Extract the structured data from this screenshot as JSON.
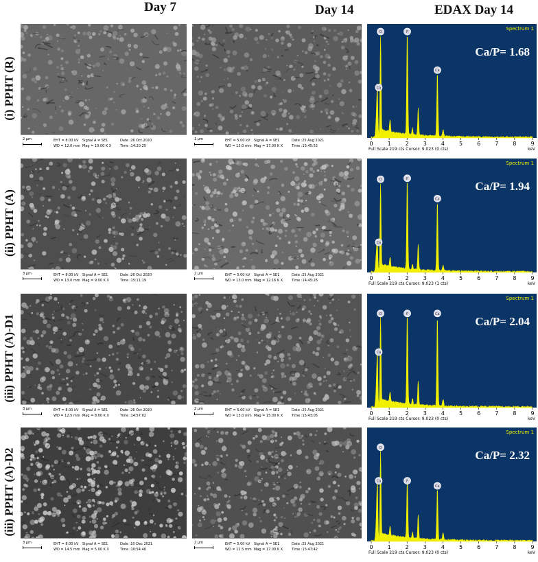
{
  "headers": {
    "day7": "Day 7",
    "day14": "Day 14",
    "edax": "EDAX Day 14"
  },
  "rows": [
    {
      "label": "(i) PPHT (R)",
      "day7": {
        "scale": "2 µm",
        "eht": "EHT = 8.00 kV",
        "wd": "WD = 12.0 mm",
        "signal": "Signal A = SE1",
        "mag": "Mag = 10.00 K X",
        "date": "Date :26 Oct 2020",
        "time": "Time :14:20:25"
      },
      "day14": {
        "scale": "1 µm",
        "eht": "EHT = 5.00 kV",
        "wd": "WD = 13.0 mm",
        "signal": "Signal A = SE1",
        "mag": "Mag = 17.00 K X",
        "date": "Date :25 Aug 2021",
        "time": "Time :15:45:52"
      },
      "edax": {
        "ratio": "Ca/P= 1.68",
        "spectrum": "Spectrum 1",
        "fullscale": "Full Scale 219 cts Cursor: 9.023 (0 cts)"
      }
    },
    {
      "label": "(ii) PPHT (A)",
      "day7": {
        "scale": "3 µm",
        "eht": "EHT = 8.00 kV",
        "wd": "WD = 13.0 mm",
        "signal": "Signal A = SE1",
        "mag": "Mag = 9.00 K X",
        "date": "Date :26 Oct 2020",
        "time": "Time :15:11:19"
      },
      "day14": {
        "scale": "2 µm",
        "eht": "EHT = 5.00 kV",
        "wd": "WD = 13.0 mm",
        "signal": "Signal A = SE1",
        "mag": "Mag = 12.16 K X",
        "date": "Date :25 Aug 2021",
        "time": "Time :14:45:26"
      },
      "edax": {
        "ratio": "Ca/P= 1.94",
        "spectrum": "Spectrum 1",
        "fullscale": "Full Scale 219 cts Cursor: 9.023 (1 cts)"
      }
    },
    {
      "label": "(iii) PPHT (A)-D1",
      "day7": {
        "scale": "3 µm",
        "eht": "EHT = 8.00 kV",
        "wd": "WD = 12.5 mm",
        "signal": "Signal A = SE1",
        "mag": "Mag = 8.00 K X",
        "date": "Date :26 Oct 2020",
        "time": "Time :14:57:02"
      },
      "day14": {
        "scale": "2 µm",
        "eht": "EHT = 5.00 kV",
        "wd": "WD = 13.0 mm",
        "signal": "Signal A = SE1",
        "mag": "Mag = 15.00 K X",
        "date": "Date :25 Aug 2021",
        "time": "Time :15:43:05"
      },
      "edax": {
        "ratio": "Ca/P= 2.04",
        "spectrum": "Spectrum 1",
        "fullscale": "Full Scale 219 cts Cursor: 9.023 (0 cts)"
      }
    },
    {
      "label": "(iii) PPHT (A)-D2",
      "day7": {
        "scale": "3 µm",
        "eht": "EHT = 8.00 kV",
        "wd": "WD = 14.5 mm",
        "signal": "Signal A = SE1",
        "mag": "Mag = 5.00 K X",
        "date": "Date :10 Dec 2021",
        "time": "Time :10:54:40"
      },
      "day14": {
        "scale": "2 µm",
        "eht": "EHT = 5.00 kV",
        "wd": "WD = 12.5 mm",
        "signal": "Signal A = SE1",
        "mag": "Mag = 17.00 K X",
        "date": "Date :25 Aug 2021",
        "time": "Time :15:47:42"
      },
      "edax": {
        "ratio": "Ca/P= 2.32",
        "spectrum": "Spectrum 1",
        "fullscale": "Full Scale 219 cts Cursor: 9.023 (0 cts)"
      }
    }
  ],
  "spectrum": {
    "type": "line",
    "xlabel": "keV",
    "xlim": [
      0,
      9
    ],
    "x_ticks": [
      "0",
      "1",
      "2",
      "3",
      "4",
      "5",
      "6",
      "7",
      "8",
      "9"
    ],
    "peak_labels": [
      "Ca",
      "O",
      "P",
      "Ca"
    ],
    "colors": {
      "background": "#0c3567",
      "trace": "#f0f000",
      "text": "#ffffff"
    }
  },
  "chart_data": [
    {
      "type": "line",
      "xlabel": "keV",
      "xlim": [
        0,
        9
      ],
      "peaks": [
        {
          "label": "Ca",
          "x": 0.34,
          "y": 0.45
        },
        {
          "label": "O",
          "x": 0.52,
          "y": 1.0
        },
        {
          "label": "P",
          "x": 2.01,
          "y": 1.0
        },
        {
          "label": "Ca",
          "x": 3.69,
          "y": 0.62
        }
      ],
      "ratio": "Ca/P= 1.68"
    },
    {
      "type": "line",
      "xlabel": "keV",
      "xlim": [
        0,
        9
      ],
      "peaks": [
        {
          "label": "Ca",
          "x": 0.34,
          "y": 0.25
        },
        {
          "label": "O",
          "x": 0.52,
          "y": 0.87
        },
        {
          "label": "P",
          "x": 2.01,
          "y": 0.88
        },
        {
          "label": "Ca",
          "x": 3.69,
          "y": 0.68
        }
      ],
      "ratio": "Ca/P= 1.94"
    },
    {
      "type": "line",
      "xlabel": "keV",
      "xlim": [
        0,
        9
      ],
      "peaks": [
        {
          "label": "Ca",
          "x": 0.34,
          "y": 0.5
        },
        {
          "label": "O",
          "x": 0.52,
          "y": 0.88
        },
        {
          "label": "P",
          "x": 2.01,
          "y": 0.88
        },
        {
          "label": "Ca",
          "x": 3.69,
          "y": 0.88
        }
      ],
      "ratio": "Ca/P= 2.04"
    },
    {
      "type": "line",
      "xlabel": "keV",
      "xlim": [
        0,
        9
      ],
      "peaks": [
        {
          "label": "Ca",
          "x": 0.34,
          "y": 0.55
        },
        {
          "label": "O",
          "x": 0.52,
          "y": 0.88
        },
        {
          "label": "P",
          "x": 2.01,
          "y": 0.55
        },
        {
          "label": "Ca",
          "x": 3.69,
          "y": 0.5
        }
      ],
      "ratio": "Ca/P= 2.32"
    }
  ]
}
